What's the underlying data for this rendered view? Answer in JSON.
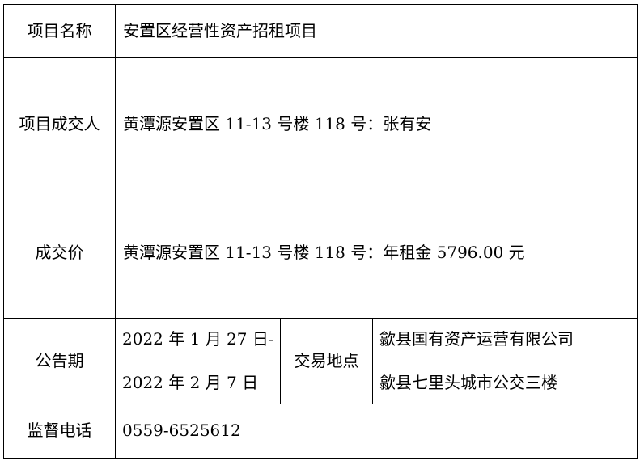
{
  "rows": {
    "project_name": {
      "label": "项目名称",
      "value": "安置区经营性资产招租项目"
    },
    "winner": {
      "label": "项目成交人",
      "value": "黄潭源安置区 11-13 号楼 118 号：张有安"
    },
    "price": {
      "label": "成交价",
      "value": "黄潭源安置区 11-13 号楼 118 号：年租金 5796.00 元"
    },
    "notice_period": {
      "label": "公告期",
      "value_line1": "2022 年 1 月 27 日-",
      "value_line2": "2022 年 2 月 7 日",
      "location_label": "交易地点",
      "location_line1": "歙县国有资产运营有限公司",
      "location_line2": "歙县七里头城市公交三楼"
    },
    "hotline": {
      "label": "监督电话",
      "value": "0559-6525612"
    }
  }
}
